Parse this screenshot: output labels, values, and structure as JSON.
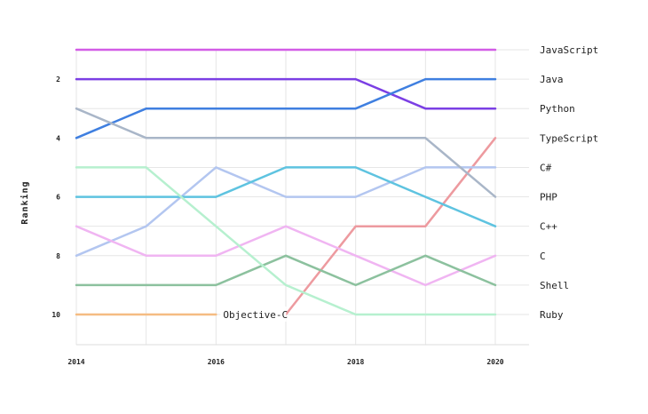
{
  "chart_data": {
    "type": "line",
    "ylabel": "Ranking",
    "xlabel": "",
    "title": "",
    "x_range": [
      2014,
      2020
    ],
    "y_range": [
      1,
      10
    ],
    "y_inverted": true,
    "x_ticks": [
      "2014",
      "2016",
      "2018",
      "2020"
    ],
    "y_ticks": [
      "2",
      "4",
      "6",
      "8",
      "10"
    ],
    "grid": "horizontal",
    "legend": "direct-labels-right",
    "series": [
      {
        "name": "JavaScript",
        "color": "#d35ce6",
        "points": [
          [
            2014,
            1
          ],
          [
            2015,
            1
          ],
          [
            2016,
            1
          ],
          [
            2017,
            1
          ],
          [
            2018,
            1
          ],
          [
            2019,
            1
          ],
          [
            2020,
            1
          ]
        ]
      },
      {
        "name": "Python",
        "color": "#7b3fe4",
        "points": [
          [
            2014,
            2
          ],
          [
            2015,
            2
          ],
          [
            2016,
            2
          ],
          [
            2017,
            2
          ],
          [
            2018,
            2
          ],
          [
            2019,
            3
          ],
          [
            2020,
            3
          ]
        ]
      },
      {
        "name": "Java",
        "color": "#3f7fe0",
        "points": [
          [
            2014,
            4
          ],
          [
            2015,
            3
          ],
          [
            2016,
            3
          ],
          [
            2017,
            3
          ],
          [
            2018,
            3
          ],
          [
            2019,
            2
          ],
          [
            2020,
            2
          ]
        ]
      },
      {
        "name": "TypeScript",
        "color": "#ed9a9f",
        "points": [
          [
            2017,
            10
          ],
          [
            2018,
            7
          ],
          [
            2019,
            7
          ],
          [
            2020,
            4
          ]
        ]
      },
      {
        "name": "C#",
        "color": "#b3c6f0",
        "points": [
          [
            2014,
            8
          ],
          [
            2015,
            7
          ],
          [
            2016,
            5
          ],
          [
            2017,
            6
          ],
          [
            2018,
            6
          ],
          [
            2019,
            5
          ],
          [
            2020,
            5
          ]
        ]
      },
      {
        "name": "PHP",
        "color": "#a9b6c8",
        "points": [
          [
            2014,
            3
          ],
          [
            2015,
            4
          ],
          [
            2016,
            4
          ],
          [
            2017,
            4
          ],
          [
            2018,
            4
          ],
          [
            2019,
            4
          ],
          [
            2020,
            6
          ]
        ]
      },
      {
        "name": "C++",
        "color": "#5ec3e0",
        "points": [
          [
            2014,
            6
          ],
          [
            2015,
            6
          ],
          [
            2016,
            6
          ],
          [
            2017,
            5
          ],
          [
            2018,
            5
          ],
          [
            2019,
            6
          ],
          [
            2020,
            7
          ]
        ]
      },
      {
        "name": "C",
        "color": "#f0b5f2",
        "points": [
          [
            2014,
            7
          ],
          [
            2015,
            8
          ],
          [
            2016,
            8
          ],
          [
            2017,
            7
          ],
          [
            2018,
            8
          ],
          [
            2019,
            9
          ],
          [
            2020,
            8
          ]
        ]
      },
      {
        "name": "Shell",
        "color": "#8cc19e",
        "points": [
          [
            2014,
            9
          ],
          [
            2015,
            9
          ],
          [
            2016,
            9
          ],
          [
            2017,
            8
          ],
          [
            2018,
            9
          ],
          [
            2019,
            8
          ],
          [
            2020,
            9
          ]
        ]
      },
      {
        "name": "Ruby",
        "color": "#b6f0cf",
        "points": [
          [
            2014,
            5
          ],
          [
            2015,
            5
          ],
          [
            2016,
            7
          ],
          [
            2017,
            9
          ],
          [
            2018,
            10
          ],
          [
            2019,
            10
          ],
          [
            2020,
            10
          ]
        ]
      },
      {
        "name": "Objective-C",
        "color": "#f5bc82",
        "points": [
          [
            2014,
            10
          ],
          [
            2015,
            10
          ],
          [
            2016,
            10
          ]
        ]
      }
    ]
  }
}
